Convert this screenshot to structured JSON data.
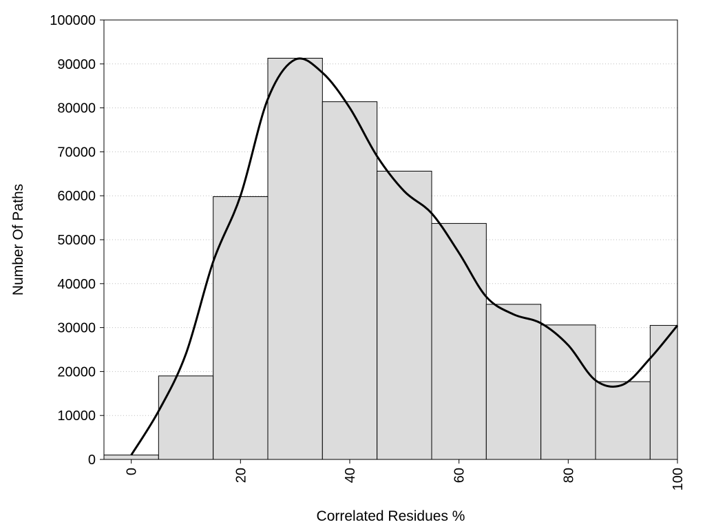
{
  "chart_data": {
    "type": "bar",
    "xlabel": "Correlated Residues %",
    "ylabel": "Number Of Paths",
    "xlim": [
      -5,
      100
    ],
    "ylim": [
      0,
      100000
    ],
    "grid": "horizontal dotted",
    "x_ticks": [
      "0",
      "20",
      "40",
      "60",
      "80",
      "100"
    ],
    "y_ticks": [
      "0",
      "10000",
      "20000",
      "30000",
      "40000",
      "50000",
      "60000",
      "70000",
      "80000",
      "90000",
      "100000"
    ],
    "bins": [
      {
        "center": 0,
        "value": 1000
      },
      {
        "center": 10,
        "value": 19000
      },
      {
        "center": 20,
        "value": 59800
      },
      {
        "center": 30,
        "value": 91300
      },
      {
        "center": 40,
        "value": 81400
      },
      {
        "center": 50,
        "value": 65600
      },
      {
        "center": 60,
        "value": 53700
      },
      {
        "center": 70,
        "value": 35300
      },
      {
        "center": 80,
        "value": 30600
      },
      {
        "center": 90,
        "value": 17700
      },
      {
        "center": 100,
        "value": 30500
      }
    ],
    "curve": {
      "x": [
        0,
        5,
        10,
        15,
        20,
        25,
        30,
        35,
        40,
        45,
        50,
        55,
        60,
        65,
        70,
        75,
        80,
        85,
        90,
        95,
        100
      ],
      "y": [
        1000,
        11000,
        24000,
        45000,
        60000,
        82000,
        91000,
        88000,
        80000,
        69000,
        61000,
        56000,
        47000,
        37000,
        33000,
        31000,
        26000,
        18000,
        17000,
        23000,
        30500
      ]
    },
    "colors": {
      "bar_fill": "#dcdcdc",
      "bar_stroke": "#000000",
      "curve": "#000000",
      "grid": "#bbbbbb"
    }
  }
}
